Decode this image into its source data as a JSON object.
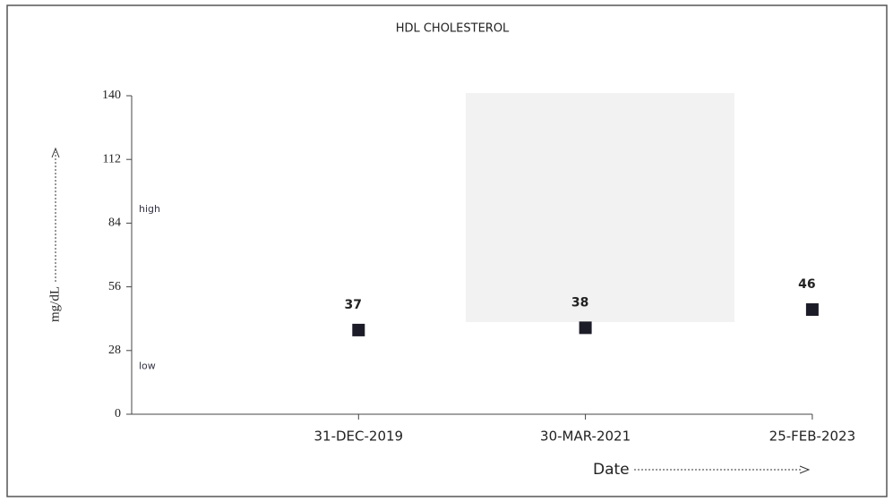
{
  "chart_data": {
    "type": "scatter",
    "title": "HDL CHOLESTEROL",
    "x_label": "Date",
    "y_label": "mg/dL",
    "categories": [
      "31-DEC-2019",
      "30-MAR-2021",
      "25-FEB-2023"
    ],
    "values": [
      37,
      38,
      46
    ],
    "color": "#1c1c28",
    "ylim": [
      0,
      140
    ],
    "yticks": [
      0,
      28,
      56,
      84,
      112,
      140
    ],
    "annotations": [
      {
        "text": "high",
        "y": 90
      },
      {
        "text": "low",
        "y": 21
      }
    ]
  }
}
